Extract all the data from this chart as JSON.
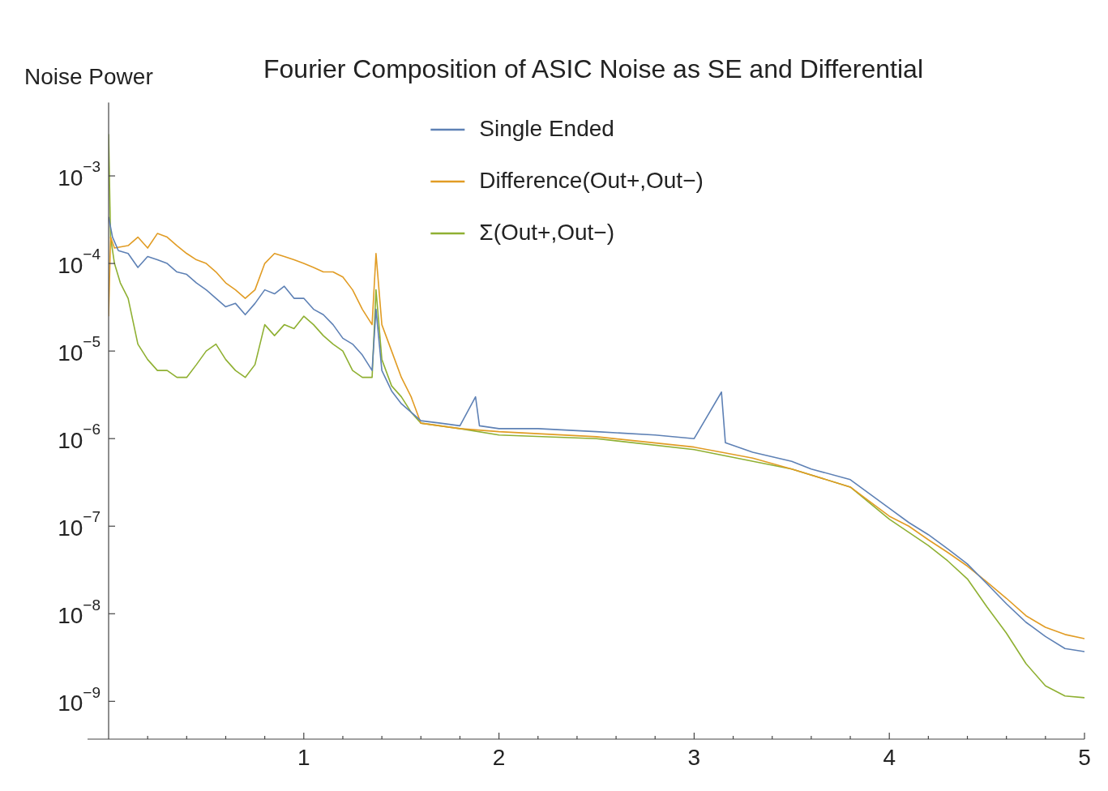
{
  "chart_data": {
    "type": "line",
    "title": "Fourier Composition of ASIC Noise as SE and Differential",
    "ylabel": "Noise Power",
    "log": "y",
    "grid": false,
    "legend": "top",
    "marker": "none",
    "line_style": "solid",
    "xlim": [
      0,
      5
    ],
    "ylim": [
      3.7e-10,
      0.0069
    ],
    "xticks": [
      {
        "value": 0.2,
        "label": null
      },
      {
        "value": 0.4,
        "label": null
      },
      {
        "value": 0.6,
        "label": null
      },
      {
        "value": 0.8,
        "label": null
      },
      1,
      {
        "value": 1.2,
        "label": null
      },
      {
        "value": 1.4,
        "label": null
      },
      {
        "value": 1.6,
        "label": null
      },
      {
        "value": 1.8,
        "label": null
      },
      2,
      {
        "value": 2.2,
        "label": null
      },
      {
        "value": 2.4,
        "label": null
      },
      {
        "value": 2.6,
        "label": null
      },
      {
        "value": 2.8,
        "label": null
      },
      3,
      {
        "value": 3.2,
        "label": null
      },
      {
        "value": 3.4,
        "label": null
      },
      {
        "value": 3.6,
        "label": null
      },
      {
        "value": 3.8,
        "label": null
      },
      4,
      {
        "value": 4.2,
        "label": null
      },
      {
        "value": 4.4,
        "label": null
      },
      {
        "value": 4.6,
        "label": null
      },
      {
        "value": 4.8,
        "label": null
      },
      5
    ],
    "yticks": [
      {
        "value": 1e-09,
        "label": "10$^{−9}$"
      },
      {
        "value": 1e-08,
        "label": "10$^{−8}$"
      },
      {
        "value": 1e-07,
        "label": "10$^{−7}$"
      },
      {
        "value": 1e-06,
        "label": "10$^{−6}$"
      },
      {
        "value": 1e-05,
        "label": "10$^{−5}$"
      },
      {
        "value": 0.0001,
        "label": "10$^{−4}$"
      },
      {
        "value": 0.001,
        "label": "10$^{−3}$"
      }
    ],
    "series": [
      {
        "name": "Single Ended",
        "color": "#5e81b5",
        "x": [
          0,
          0.02,
          0.05,
          0.1,
          0.15,
          0.2,
          0.25,
          0.3,
          0.35,
          0.4,
          0.45,
          0.5,
          0.55,
          0.6,
          0.65,
          0.7,
          0.75,
          0.8,
          0.85,
          0.9,
          0.95,
          1.0,
          1.05,
          1.1,
          1.15,
          1.2,
          1.25,
          1.3,
          1.35,
          1.37,
          1.4,
          1.45,
          1.5,
          1.55,
          1.6,
          1.7,
          1.8,
          1.88,
          1.9,
          2.0,
          2.2,
          2.5,
          2.8,
          3.0,
          3.14,
          3.16,
          3.3,
          3.5,
          3.6,
          3.8,
          4.0,
          4.1,
          4.2,
          4.3,
          4.4,
          4.5,
          4.6,
          4.7,
          4.8,
          4.9,
          5.0
        ],
        "values": [
          0.00034,
          0.0002,
          0.00014,
          0.00013,
          9e-05,
          0.00012,
          0.00011,
          0.0001,
          8e-05,
          7.5e-05,
          6e-05,
          5e-05,
          4e-05,
          3.2e-05,
          3.5e-05,
          2.6e-05,
          3.5e-05,
          5e-05,
          4.5e-05,
          5.5e-05,
          4e-05,
          4e-05,
          3e-05,
          2.6e-05,
          2e-05,
          1.4e-05,
          1.2e-05,
          9e-06,
          6e-06,
          3e-05,
          6e-06,
          3.5e-06,
          2.5e-06,
          2e-06,
          1.6e-06,
          1.5e-06,
          1.4e-06,
          3e-06,
          1.4e-06,
          1.3e-06,
          1.3e-06,
          1.2e-06,
          1.1e-06,
          1e-06,
          3.4e-06,
          9e-07,
          7e-07,
          5.5e-07,
          4.5e-07,
          3.4e-07,
          1.6e-07,
          1.1e-07,
          8e-08,
          5.5e-08,
          3.7e-08,
          2.2e-08,
          1.3e-08,
          8e-09,
          5.5e-09,
          4e-09,
          3.7e-09
        ]
      },
      {
        "name": "Difference(Out+,Out−)",
        "color": "#e19c24",
        "x": [
          0,
          0.01,
          0.03,
          0.1,
          0.15,
          0.2,
          0.25,
          0.3,
          0.35,
          0.4,
          0.45,
          0.5,
          0.55,
          0.6,
          0.65,
          0.7,
          0.75,
          0.8,
          0.85,
          0.9,
          0.95,
          1.0,
          1.05,
          1.1,
          1.15,
          1.2,
          1.25,
          1.3,
          1.35,
          1.37,
          1.4,
          1.45,
          1.5,
          1.55,
          1.6,
          1.8,
          2.0,
          2.5,
          3.0,
          3.14,
          3.3,
          3.5,
          3.8,
          4.0,
          4.1,
          4.2,
          4.3,
          4.4,
          4.5,
          4.6,
          4.7,
          4.8,
          4.9,
          5.0
        ],
        "values": [
          2.5e-05,
          0.0002,
          0.00015,
          0.00016,
          0.0002,
          0.00015,
          0.00022,
          0.0002,
          0.00016,
          0.00013,
          0.00011,
          0.0001,
          8e-05,
          6e-05,
          5e-05,
          4e-05,
          5e-05,
          0.0001,
          0.00013,
          0.00012,
          0.00011,
          0.0001,
          9e-05,
          8e-05,
          8e-05,
          7e-05,
          5e-05,
          3e-05,
          2e-05,
          0.00013,
          2e-05,
          1e-05,
          5e-06,
          3e-06,
          1.5e-06,
          1.3e-06,
          1.2e-06,
          1.05e-06,
          8e-07,
          7e-07,
          6e-07,
          4.5e-07,
          2.8e-07,
          1.3e-07,
          1e-07,
          7e-08,
          5e-08,
          3.5e-08,
          2.3e-08,
          1.5e-08,
          9.5e-09,
          7e-09,
          5.8e-09,
          5.2e-09
        ]
      },
      {
        "name": "Σ(Out+,Out−)",
        "color": "#8fb032",
        "x": [
          0,
          0.01,
          0.03,
          0.06,
          0.1,
          0.15,
          0.2,
          0.25,
          0.3,
          0.35,
          0.4,
          0.45,
          0.5,
          0.55,
          0.6,
          0.65,
          0.7,
          0.75,
          0.8,
          0.85,
          0.9,
          0.95,
          1.0,
          1.05,
          1.1,
          1.15,
          1.2,
          1.25,
          1.3,
          1.35,
          1.37,
          1.4,
          1.45,
          1.5,
          1.55,
          1.6,
          1.8,
          2.0,
          2.5,
          3.0,
          3.5,
          3.8,
          4.0,
          4.1,
          4.2,
          4.3,
          4.4,
          4.5,
          4.6,
          4.7,
          4.8,
          4.9,
          5.0
        ],
        "values": [
          0.003,
          0.0002,
          0.0001,
          6e-05,
          4e-05,
          1.2e-05,
          8e-06,
          6e-06,
          6e-06,
          5e-06,
          5e-06,
          7e-06,
          1e-05,
          1.2e-05,
          8e-06,
          6e-06,
          5e-06,
          7e-06,
          2e-05,
          1.5e-05,
          2e-05,
          1.8e-05,
          2.5e-05,
          2e-05,
          1.5e-05,
          1.2e-05,
          1e-05,
          6e-06,
          5e-06,
          5e-06,
          5e-05,
          8e-06,
          4e-06,
          3e-06,
          2e-06,
          1.5e-06,
          1.3e-06,
          1.1e-06,
          1e-06,
          7.5e-07,
          4.5e-07,
          2.8e-07,
          1.2e-07,
          8.5e-08,
          6e-08,
          4e-08,
          2.5e-08,
          1.2e-08,
          6e-09,
          2.7e-09,
          1.5e-09,
          1.15e-09,
          1.1e-09
        ]
      }
    ]
  }
}
